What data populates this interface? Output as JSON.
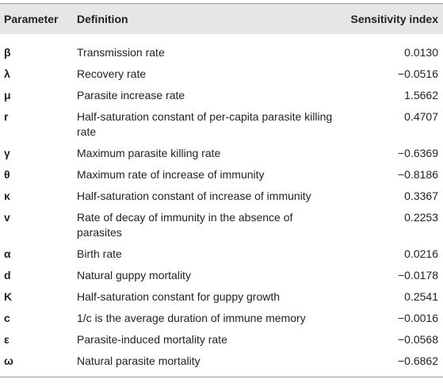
{
  "table": {
    "header": [
      "Parameter",
      "Definition",
      "Sensitivity index"
    ],
    "rows": [
      [
        "β",
        "Transmission rate",
        "0.0130"
      ],
      [
        "λ",
        "Recovery rate",
        "−0.0516"
      ],
      [
        "μ",
        "Parasite increase rate",
        "1.5662"
      ],
      [
        "r",
        "Half-saturation constant of per-capita parasite killing rate",
        "0.4707"
      ],
      [
        "γ",
        "Maximum parasite killing rate",
        "−0.6369"
      ],
      [
        "θ",
        "Maximum rate of increase of immunity",
        "−0.8186"
      ],
      [
        "κ",
        "Half-saturation constant of increase of immunity",
        "0.3367"
      ],
      [
        "v",
        "Rate of decay of immunity in the absence of parasites",
        "0.2253"
      ],
      [
        "α",
        "Birth rate",
        "0.0216"
      ],
      [
        "d",
        "Natural guppy mortality",
        "−0.0178"
      ],
      [
        "K",
        "Half-saturation constant for guppy growth",
        "0.2541"
      ],
      [
        "c",
        "1/c is the average duration of immune memory",
        "−0.0016"
      ],
      [
        "ε",
        "Parasite-induced mortality rate",
        "−0.0568"
      ],
      [
        "ω",
        "Natural parasite mortality",
        "−0.6862"
      ]
    ]
  }
}
